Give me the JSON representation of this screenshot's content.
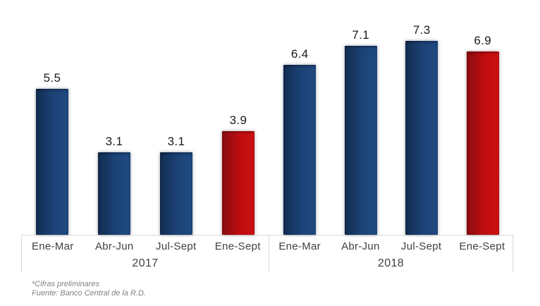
{
  "chart_data": {
    "type": "bar",
    "title": "",
    "groups": [
      {
        "year": "2017",
        "categories": [
          "Ene-Mar",
          "Abr-Jun",
          "Jul-Sept",
          "Ene-Sept"
        ],
        "values": [
          5.5,
          3.1,
          3.1,
          3.9
        ],
        "bar_colors": [
          "blue",
          "blue",
          "blue",
          "red"
        ]
      },
      {
        "year": "2018",
        "categories": [
          "Ene-Mar",
          "Abr-Jun",
          "Jul-Sept",
          "Ene-Sept"
        ],
        "values": [
          6.4,
          7.1,
          7.3,
          6.9
        ],
        "bar_colors": [
          "blue",
          "blue",
          "blue",
          "red"
        ]
      }
    ],
    "ylim": [
      0,
      7.5
    ],
    "grid": false,
    "legend": false,
    "value_labels_shown": true,
    "y_axis_shown": false
  },
  "colors": {
    "blue_bar_start": "#122c50",
    "blue_bar_mid": "#1c4377",
    "blue_bar_end": "#1f4b82",
    "red_bar_start": "#8a0d10",
    "red_bar_mid": "#c20d10",
    "red_bar_end": "#cb1013",
    "axis_line": "#d9d9d9",
    "tick_label": "#404040",
    "value_label": "#1a1a1a",
    "footnote": "#808080"
  },
  "footnotes": {
    "line1": "*Cifras preliminares",
    "line2": "Fuente: Banco Central de la R.D."
  }
}
